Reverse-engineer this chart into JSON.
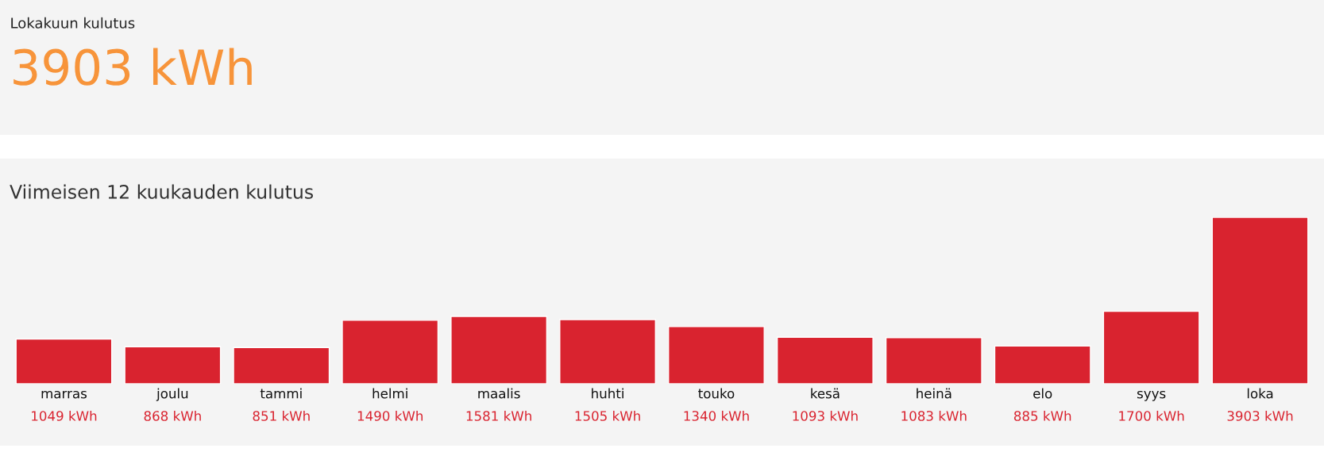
{
  "chart_data": [
    {
      "type": "other",
      "title": "Lokakuun kulutus",
      "annotations": [
        "3903 kWh"
      ]
    },
    {
      "type": "bar",
      "title": "Viimeisen 12 kuukauden kulutus",
      "categories": [
        "marras",
        "joulu",
        "tammi",
        "helmi",
        "maalis",
        "huhti",
        "touko",
        "kesä",
        "heinä",
        "elo",
        "syys",
        "loka"
      ],
      "values": [
        1049,
        868,
        851,
        1490,
        1581,
        1505,
        1340,
        1093,
        1083,
        885,
        1700,
        3903
      ],
      "value_labels": [
        "1049 kWh",
        "868 kWh",
        "851 kWh",
        "1490 kWh",
        "1581 kWh",
        "1505 kWh",
        "1340 kWh",
        "1093 kWh",
        "1083 kWh",
        "885 kWh",
        "1700 kWh",
        "3903 kWh"
      ],
      "color": "#d9232f",
      "grid": false,
      "legend": false
    }
  ]
}
